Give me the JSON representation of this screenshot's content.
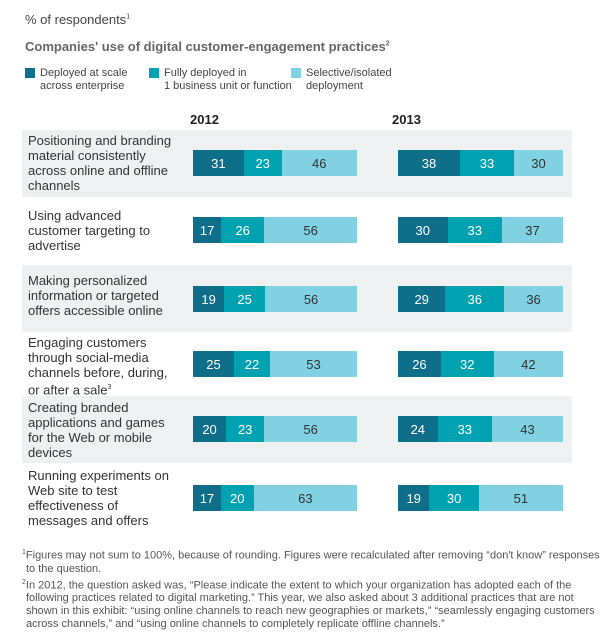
{
  "chart_data": {
    "type": "bar",
    "orientation": "horizontal-stacked",
    "unit": "% of respondents",
    "unit_note": "1",
    "title": "Companies' use of digital customer-engagement practices",
    "title_note": "2",
    "legend": [
      "Deployed at scale across enterprise",
      "Fully deployed in 1 business unit or function",
      "Selective/isolated deployment"
    ],
    "legend_lines": [
      [
        "Deployed at scale",
        "across enterprise"
      ],
      [
        "Fully deployed in",
        "1 business unit or function"
      ],
      [
        "Selective/isolated",
        "deployment"
      ]
    ],
    "colors": [
      "#0f6e8a",
      "#00a2b1",
      "#80d1e1"
    ],
    "panels": [
      "2012",
      "2013"
    ],
    "categories": [
      "Positioning and branding material consistently across online and offline channels",
      "Using advanced customer targeting to advertise",
      "Making personalized information or targeted offers accessible online",
      "Engaging customers through social-media channels before, during, or after a sale",
      "Creating branded applications and games for the Web or mobile devices",
      "Running experiments on Web site to test effectiveness of messages and offers"
    ],
    "category_notes": [
      "",
      "",
      "",
      "3",
      "",
      ""
    ],
    "values": {
      "2012": [
        [
          31,
          23,
          46
        ],
        [
          17,
          26,
          56
        ],
        [
          19,
          25,
          56
        ],
        [
          25,
          22,
          53
        ],
        [
          20,
          23,
          56
        ],
        [
          17,
          20,
          63
        ]
      ],
      "2013": [
        [
          38,
          33,
          30
        ],
        [
          30,
          33,
          37
        ],
        [
          29,
          36,
          36
        ],
        [
          26,
          32,
          42
        ],
        [
          24,
          33,
          43
        ],
        [
          19,
          30,
          51
        ]
      ]
    }
  },
  "footnotes": [
    {
      "mark": "1",
      "text": "Figures may not sum to 100%, because of rounding. Figures were recalculated after removing “don't know” responses to the question."
    },
    {
      "mark": "2",
      "text": "In 2012, the question asked was, “Please indicate the extent to which your organization has adopted each of the following practices related to digital marketing.” This year, we also asked about 3 additional practices that are not shown in this exhibit: “using online channels to reach new geographies or markets,” “seamlessly engaging customers across channels,” and “using online channels to completely replicate offline channels.”"
    }
  ]
}
